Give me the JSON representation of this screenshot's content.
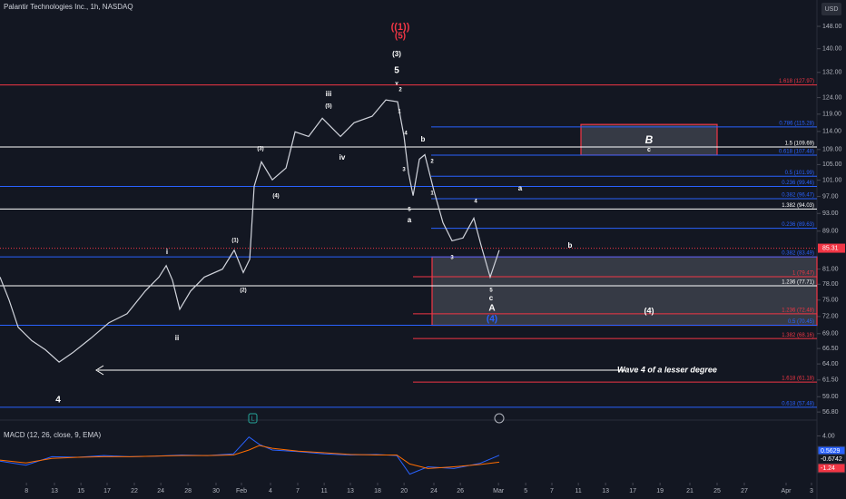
{
  "chart_data": {
    "type": "line",
    "title": "Palantir Technologies Inc., 1h, NASDAQ",
    "currency": "USD",
    "log_scale": true,
    "xlim": [
      0,
      31.5
    ],
    "ylim": [
      55.8,
      158
    ],
    "xticks": [
      {
        "value": 1.02,
        "label": "8"
      },
      {
        "value": 2.1,
        "label": "13"
      },
      {
        "value": 3.12,
        "label": "15"
      },
      {
        "value": 4.13,
        "label": "17"
      },
      {
        "value": 5.18,
        "label": "22"
      },
      {
        "value": 6.2,
        "label": "24"
      },
      {
        "value": 7.25,
        "label": "28"
      },
      {
        "value": 8.33,
        "label": "30"
      },
      {
        "value": 9.31,
        "label": "Feb"
      },
      {
        "value": 10.43,
        "label": "4"
      },
      {
        "value": 11.48,
        "label": "7"
      },
      {
        "value": 12.5,
        "label": "11"
      },
      {
        "value": 13.51,
        "label": "13"
      },
      {
        "value": 14.56,
        "label": "18"
      },
      {
        "value": 15.58,
        "label": "20"
      },
      {
        "value": 16.73,
        "label": "24"
      },
      {
        "value": 17.75,
        "label": "26"
      },
      {
        "value": 19.22,
        "label": "Mar"
      },
      {
        "value": 20.27,
        "label": "5"
      },
      {
        "value": 21.28,
        "label": "7"
      },
      {
        "value": 22.3,
        "label": "11"
      },
      {
        "value": 23.35,
        "label": "13"
      },
      {
        "value": 24.4,
        "label": "17"
      },
      {
        "value": 25.45,
        "label": "19"
      },
      {
        "value": 26.6,
        "label": "21"
      },
      {
        "value": 27.65,
        "label": "25"
      },
      {
        "value": 28.7,
        "label": "27"
      },
      {
        "value": 30.31,
        "label": "Apr"
      },
      {
        "value": 31.29,
        "label": "3"
      }
    ],
    "yticks": [
      {
        "value": 148,
        "label": "148.00"
      },
      {
        "value": 140,
        "label": "140.00"
      },
      {
        "value": 132,
        "label": "132.00"
      },
      {
        "value": 124,
        "label": "124.00"
      },
      {
        "value": 119,
        "label": "119.00"
      },
      {
        "value": 114,
        "label": "114.00"
      },
      {
        "value": 109,
        "label": "109.00"
      },
      {
        "value": 105,
        "label": "105.00"
      },
      {
        "value": 101,
        "label": "101.00"
      },
      {
        "value": 97,
        "label": "97.00"
      },
      {
        "value": 93,
        "label": "93.00"
      },
      {
        "value": 89,
        "label": "89.00"
      },
      {
        "value": 81,
        "label": "81.00"
      },
      {
        "value": 78,
        "label": "78.00"
      },
      {
        "value": 75,
        "label": "75.00"
      },
      {
        "value": 72,
        "label": "72.00"
      },
      {
        "value": 69,
        "label": "69.00"
      },
      {
        "value": 66.5,
        "label": "66.50"
      },
      {
        "value": 64,
        "label": "64.00"
      },
      {
        "value": 61.5,
        "label": "61.50"
      },
      {
        "value": 59,
        "label": "59.00"
      },
      {
        "value": 56.8,
        "label": "56.80"
      }
    ],
    "series": [
      {
        "color": "#d1d4dc",
        "x": [
          0,
          0.35,
          0.7,
          1.23,
          1.75,
          2.28,
          2.8,
          3.5,
          4.2,
          4.9,
          5.6,
          6.13,
          6.41,
          6.65,
          6.93,
          7.35,
          7.88,
          8.58,
          9.03,
          9.38,
          9.63,
          9.8,
          10.08,
          10.5,
          11.03,
          11.38,
          11.9,
          12.43,
          13.13,
          13.65,
          14.35,
          14.88,
          15.33,
          15.58,
          15.75,
          15.93,
          16.17,
          16.38,
          16.73,
          17.08,
          17.43,
          17.85,
          18.27,
          18.55,
          18.9,
          19.25
        ],
        "values": [
          79.4,
          75.0,
          70.1,
          67.8,
          66.3,
          64.3,
          65.8,
          68.2,
          70.9,
          72.5,
          76.7,
          79.4,
          81.7,
          78.8,
          73.3,
          76.7,
          79.4,
          81.0,
          84.9,
          80.3,
          83.0,
          99.5,
          105.7,
          101.1,
          104.1,
          113.9,
          112.6,
          117.8,
          112.6,
          116.5,
          118.4,
          123.3,
          122.7,
          112.6,
          102.9,
          97.2,
          106.4,
          107.6,
          98.4,
          90.9,
          86.9,
          87.5,
          91.9,
          85.9,
          79.4,
          84.9
        ]
      }
    ],
    "last": {
      "value": 85.31,
      "label": "85.31",
      "color": "#f23645"
    },
    "levels": [
      {
        "label": "1.618 (127.97)",
        "value": 127.97,
        "color": "#f23645"
      },
      {
        "label": "0.786 (115.28)",
        "value": 115.28,
        "color": "#2962ff"
      },
      {
        "label": "1.5 (109.69)",
        "value": 109.69,
        "color": "#ffffff"
      },
      {
        "label": "0.618 (107.48)",
        "value": 107.48,
        "color": "#2962ff"
      },
      {
        "label": "0.5 (101.99)",
        "value": 101.99,
        "color": "#2962ff"
      },
      {
        "label": "0.236 (99.46)",
        "value": 99.46,
        "color": "#2962ff"
      },
      {
        "label": "0.382 (96.47)",
        "value": 96.47,
        "color": "#2962ff"
      },
      {
        "label": "1.382 (94.03)",
        "value": 94.03,
        "color": "#ffffff"
      },
      {
        "label": "0.236 (89.63)",
        "value": 89.63,
        "color": "#2962ff"
      },
      {
        "label": "0.382 (83.49)",
        "value": 83.49,
        "color": "#2962ff"
      },
      {
        "label": "1 (79.47)",
        "value": 79.47,
        "color": "#f23645"
      },
      {
        "label": "1.236 (77.71)",
        "value": 77.71,
        "color": "#ffffff"
      },
      {
        "label": "1.236 (72.48)",
        "value": 72.48,
        "color": "#f23645"
      },
      {
        "label": "0.5 (70.45)",
        "value": 70.45,
        "color": "#2962ff"
      },
      {
        "label": "1.382 (68.16)",
        "value": 68.16,
        "color": "#f23645"
      },
      {
        "label": "1.618 (61.18)",
        "value": 61.18,
        "color": "#f23645"
      },
      {
        "label": "0.618 (57.48)",
        "value": 57.48,
        "color": "#2962ff"
      }
    ],
    "boxes": [
      {
        "top": 116,
        "bottom": 107.5,
        "color": "#f23645"
      },
      {
        "top": 83.49,
        "bottom": 70.45,
        "color": "#f23645"
      }
    ],
    "annotations": [
      "((1))",
      "(5)",
      "(3)",
      "5",
      "v",
      "2",
      "iii",
      "(5)",
      "1",
      "4",
      "3",
      "b",
      "2",
      "1",
      "5",
      "a",
      "a",
      "iv",
      "(3)",
      "(4)",
      "i",
      "(1)",
      "(2)",
      "ii",
      "4",
      "3",
      "b",
      "5",
      "c",
      "A",
      "(4)",
      "B",
      "c",
      "(4)",
      "Wave 4 of a lesser degree",
      "4"
    ],
    "macd": {
      "title": "MACD (12, 26, close, 9, EMA)",
      "ylim": [
        -4,
        6.5
      ],
      "yticks": [
        {
          "value": 4,
          "label": "4.00"
        }
      ],
      "x": [
        0,
        1,
        2,
        3,
        4,
        5,
        6,
        7,
        8,
        9,
        9.6,
        10,
        10.5,
        11.5,
        12.5,
        13.5,
        14.5,
        15.3,
        15.8,
        16.5,
        17.5,
        18.5,
        19.25
      ],
      "series": [
        {
          "color": "#2962ff",
          "values": [
            -0.5,
            -1.2,
            0.3,
            0.2,
            0.5,
            0.3,
            0.4,
            0.6,
            0.5,
            0.8,
            3.8,
            2.5,
            1.5,
            1.2,
            0.8,
            0.6,
            0.7,
            0.5,
            -2.8,
            -1.5,
            -1.8,
            -0.9,
            0.5629
          ]
        },
        {
          "color": "#ff6d00",
          "values": [
            -0.3,
            -0.8,
            0,
            0.2,
            0.3,
            0.3,
            0.4,
            0.5,
            0.5,
            0.6,
            1.5,
            2.3,
            1.8,
            1.3,
            1.0,
            0.7,
            0.6,
            0.6,
            -1.0,
            -1.8,
            -1.5,
            -1.1,
            -0.6742
          ]
        }
      ],
      "last_values": [
        {
          "value": 0.5629,
          "label": "0.5629",
          "color": "#2962ff"
        },
        {
          "value": -0.6742,
          "label": "-0.6742",
          "color": "#131722"
        },
        {
          "value": -1.24,
          "label": "-1.24",
          "color": "#f23645"
        }
      ]
    }
  }
}
